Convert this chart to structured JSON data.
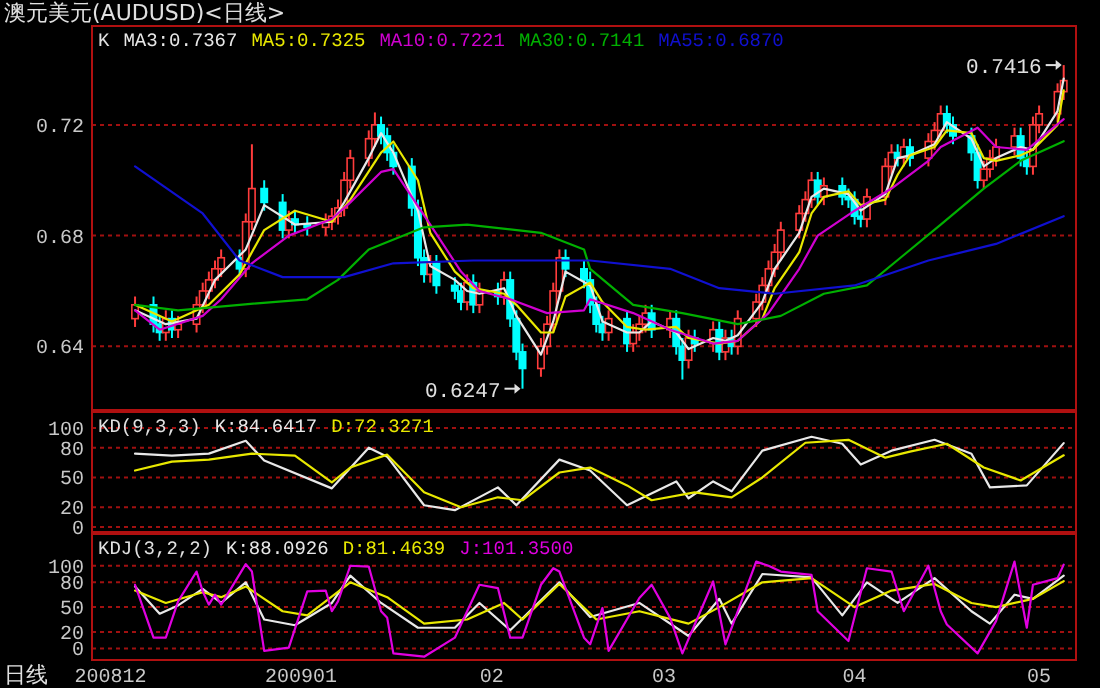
{
  "chart_data": [
    {
      "type": "candlestick",
      "title": "澳元美元(AUDUSD)<日线>",
      "legend_title": "K",
      "legend": "top left",
      "grid": "y",
      "tick_labels": "y",
      "xlim": [
        "2008-11-28",
        "2009-05-07"
      ],
      "ylim": [
        0.617,
        0.755
      ],
      "yticks": [
        0.64,
        0.68,
        0.72
      ],
      "x": [
        "2008-12-05",
        "2008-12-08",
        "2008-12-09",
        "2008-12-10",
        "2008-12-11",
        "2008-12-12",
        "2008-12-15",
        "2008-12-16",
        "2008-12-17",
        "2008-12-18",
        "2008-12-19",
        "2008-12-22",
        "2008-12-23",
        "2008-12-24",
        "2008-12-26",
        "2008-12-29",
        "2008-12-30",
        "2008-12-31",
        "2009-01-02",
        "2009-01-05",
        "2009-01-06",
        "2009-01-07",
        "2009-01-08",
        "2009-01-09",
        "2009-01-12",
        "2009-01-13",
        "2009-01-14",
        "2009-01-15",
        "2009-01-16",
        "2009-01-19",
        "2009-01-20",
        "2009-01-21",
        "2009-01-22",
        "2009-01-23",
        "2009-01-26",
        "2009-01-27",
        "2009-01-28",
        "2009-01-29",
        "2009-01-30",
        "2009-02-02",
        "2009-02-03",
        "2009-02-04",
        "2009-02-05",
        "2009-02-06",
        "2009-02-09",
        "2009-02-10",
        "2009-02-11",
        "2009-02-12",
        "2009-02-13",
        "2009-02-16",
        "2009-02-17",
        "2009-02-18",
        "2009-02-19",
        "2009-02-20",
        "2009-02-23",
        "2009-02-24",
        "2009-02-25",
        "2009-02-26",
        "2009-02-27",
        "2009-03-02",
        "2009-03-03",
        "2009-03-04",
        "2009-03-05",
        "2009-03-06",
        "2009-03-09",
        "2009-03-10",
        "2009-03-11",
        "2009-03-12",
        "2009-03-13",
        "2009-03-16",
        "2009-03-17",
        "2009-03-18",
        "2009-03-19",
        "2009-03-20",
        "2009-03-23",
        "2009-03-24",
        "2009-03-25",
        "2009-03-26",
        "2009-03-27",
        "2009-03-30",
        "2009-03-31",
        "2009-04-01",
        "2009-04-02",
        "2009-04-03",
        "2009-04-06",
        "2009-04-07",
        "2009-04-08",
        "2009-04-09",
        "2009-04-10",
        "2009-04-13",
        "2009-04-14",
        "2009-04-15",
        "2009-04-16",
        "2009-04-17",
        "2009-04-20",
        "2009-04-21",
        "2009-04-22",
        "2009-04-23",
        "2009-04-24",
        "2009-04-27",
        "2009-04-28",
        "2009-04-29",
        "2009-04-30",
        "2009-05-01",
        "2009-05-04",
        "2009-05-05"
      ],
      "ohlc": [
        [
          0.65,
          0.658,
          0.647,
          0.655
        ],
        [
          0.655,
          0.658,
          0.645,
          0.648
        ],
        [
          0.648,
          0.651,
          0.642,
          0.645
        ],
        [
          0.645,
          0.653,
          0.642,
          0.65
        ],
        [
          0.65,
          0.653,
          0.643,
          0.646
        ],
        [
          0.646,
          0.651,
          0.643,
          0.648
        ],
        [
          0.648,
          0.658,
          0.645,
          0.655
        ],
        [
          0.655,
          0.663,
          0.652,
          0.66
        ],
        [
          0.66,
          0.667,
          0.657,
          0.664
        ],
        [
          0.664,
          0.671,
          0.661,
          0.668
        ],
        [
          0.668,
          0.675,
          0.665,
          0.672
        ],
        [
          0.672,
          0.675,
          0.665,
          0.668
        ],
        [
          0.668,
          0.688,
          0.665,
          0.685
        ],
        [
          0.685,
          0.713,
          0.682,
          0.697
        ],
        [
          0.697,
          0.7,
          0.689,
          0.692
        ],
        [
          0.692,
          0.695,
          0.679,
          0.682
        ],
        [
          0.682,
          0.689,
          0.679,
          0.686
        ],
        [
          0.686,
          0.689,
          0.681,
          0.684
        ],
        [
          0.684,
          0.687,
          0.68,
          0.683
        ],
        [
          0.683,
          0.688,
          0.68,
          0.685
        ],
        [
          0.685,
          0.69,
          0.682,
          0.687
        ],
        [
          0.687,
          0.693,
          0.684,
          0.69
        ],
        [
          0.69,
          0.703,
          0.687,
          0.7
        ],
        [
          0.7,
          0.711,
          0.697,
          0.708
        ],
        [
          0.708,
          0.718,
          0.705,
          0.715
        ],
        [
          0.715,
          0.7245,
          0.712,
          0.72
        ],
        [
          0.72,
          0.723,
          0.713,
          0.716
        ],
        [
          0.716,
          0.719,
          0.707,
          0.71
        ],
        [
          0.71,
          0.713,
          0.702,
          0.705
        ],
        [
          0.705,
          0.708,
          0.687,
          0.69
        ],
        [
          0.69,
          0.693,
          0.669,
          0.672
        ],
        [
          0.672,
          0.675,
          0.663,
          0.666
        ],
        [
          0.666,
          0.673,
          0.663,
          0.67
        ],
        [
          0.67,
          0.673,
          0.659,
          0.662
        ],
        [
          0.662,
          0.665,
          0.657,
          0.66
        ],
        [
          0.66,
          0.663,
          0.653,
          0.656
        ],
        [
          0.656,
          0.666,
          0.653,
          0.663
        ],
        [
          0.663,
          0.666,
          0.652,
          0.655
        ],
        [
          0.655,
          0.663,
          0.652,
          0.66
        ],
        [
          0.66,
          0.663,
          0.655,
          0.658
        ],
        [
          0.658,
          0.667,
          0.655,
          0.664
        ],
        [
          0.664,
          0.667,
          0.647,
          0.65
        ],
        [
          0.65,
          0.653,
          0.635,
          0.638
        ],
        [
          0.638,
          0.641,
          0.6247,
          0.632
        ],
        [
          0.632,
          0.643,
          0.629,
          0.64
        ],
        [
          0.64,
          0.651,
          0.637,
          0.648
        ],
        [
          0.648,
          0.663,
          0.645,
          0.66
        ],
        [
          0.66,
          0.675,
          0.657,
          0.672
        ],
        [
          0.672,
          0.675,
          0.665,
          0.668
        ],
        [
          0.668,
          0.671,
          0.661,
          0.664
        ],
        [
          0.664,
          0.667,
          0.652,
          0.655
        ],
        [
          0.655,
          0.658,
          0.645,
          0.648
        ],
        [
          0.648,
          0.651,
          0.642,
          0.645
        ],
        [
          0.645,
          0.653,
          0.642,
          0.65
        ],
        [
          0.65,
          0.653,
          0.638,
          0.641
        ],
        [
          0.641,
          0.648,
          0.638,
          0.645
        ],
        [
          0.645,
          0.651,
          0.642,
          0.648
        ],
        [
          0.648,
          0.655,
          0.645,
          0.652
        ],
        [
          0.652,
          0.655,
          0.643,
          0.646
        ],
        [
          0.646,
          0.653,
          0.643,
          0.65
        ],
        [
          0.65,
          0.653,
          0.637,
          0.64
        ],
        [
          0.64,
          0.643,
          0.628,
          0.635
        ],
        [
          0.635,
          0.646,
          0.632,
          0.643
        ],
        [
          0.643,
          0.646,
          0.638,
          0.641
        ],
        [
          0.641,
          0.649,
          0.638,
          0.646
        ],
        [
          0.646,
          0.649,
          0.635,
          0.638
        ],
        [
          0.638,
          0.646,
          0.635,
          0.643
        ],
        [
          0.643,
          0.646,
          0.637,
          0.64
        ],
        [
          0.64,
          0.653,
          0.637,
          0.65
        ],
        [
          0.65,
          0.659,
          0.647,
          0.656
        ],
        [
          0.656,
          0.665,
          0.653,
          0.662
        ],
        [
          0.662,
          0.671,
          0.659,
          0.668
        ],
        [
          0.668,
          0.677,
          0.665,
          0.674
        ],
        [
          0.674,
          0.685,
          0.671,
          0.682
        ],
        [
          0.682,
          0.691,
          0.679,
          0.688
        ],
        [
          0.688,
          0.696,
          0.685,
          0.693
        ],
        [
          0.693,
          0.703,
          0.69,
          0.7
        ],
        [
          0.7,
          0.703,
          0.691,
          0.694
        ],
        [
          0.694,
          0.701,
          0.691,
          0.698
        ],
        [
          0.698,
          0.701,
          0.691,
          0.694
        ],
        [
          0.694,
          0.697,
          0.69,
          0.693
        ],
        [
          0.693,
          0.696,
          0.684,
          0.687
        ],
        [
          0.687,
          0.69,
          0.683,
          0.686
        ],
        [
          0.686,
          0.697,
          0.683,
          0.694
        ],
        [
          0.694,
          0.708,
          0.691,
          0.705
        ],
        [
          0.705,
          0.713,
          0.702,
          0.71
        ],
        [
          0.71,
          0.713,
          0.705,
          0.708
        ],
        [
          0.708,
          0.715,
          0.705,
          0.712
        ],
        [
          0.712,
          0.715,
          0.705,
          0.708
        ],
        [
          0.708,
          0.717,
          0.705,
          0.714
        ],
        [
          0.714,
          0.721,
          0.711,
          0.718
        ],
        [
          0.718,
          0.727,
          0.715,
          0.724
        ],
        [
          0.724,
          0.727,
          0.717,
          0.72
        ],
        [
          0.72,
          0.723,
          0.713,
          0.716
        ],
        [
          0.716,
          0.719,
          0.707,
          0.71
        ],
        [
          0.71,
          0.713,
          0.697,
          0.7
        ],
        [
          0.7,
          0.707,
          0.697,
          0.704
        ],
        [
          0.704,
          0.711,
          0.701,
          0.708
        ],
        [
          0.708,
          0.715,
          0.705,
          0.712
        ],
        [
          0.712,
          0.719,
          0.709,
          0.716
        ],
        [
          0.716,
          0.719,
          0.705,
          0.708
        ],
        [
          0.708,
          0.711,
          0.702,
          0.705
        ],
        [
          0.705,
          0.723,
          0.702,
          0.72
        ],
        [
          0.72,
          0.727,
          0.717,
          0.724
        ],
        [
          0.724,
          0.735,
          0.721,
          0.732
        ],
        [
          0.732,
          0.7416,
          0.729,
          0.736
        ]
      ],
      "series": [
        {
          "name": "MA3:0.7367",
          "type": "line",
          "color": "#e8e8e8",
          "x": [
            "2008-12-05",
            "2008-12-10",
            "2008-12-15",
            "2008-12-18",
            "2008-12-23",
            "2008-12-26",
            "2008-12-31",
            "2009-01-06",
            "2009-01-08",
            "2009-01-12",
            "2009-01-14",
            "2009-01-16",
            "2009-01-20",
            "2009-01-22",
            "2009-01-26",
            "2009-01-28",
            "2009-01-30",
            "2009-02-03",
            "2009-02-05",
            "2009-02-09",
            "2009-02-11",
            "2009-02-13",
            "2009-02-17",
            "2009-02-19",
            "2009-02-23",
            "2009-02-25",
            "2009-02-27",
            "2009-03-03",
            "2009-03-05",
            "2009-03-09",
            "2009-03-11",
            "2009-03-13",
            "2009-03-17",
            "2009-03-19",
            "2009-03-23",
            "2009-03-25",
            "2009-03-27",
            "2009-03-31",
            "2009-04-02",
            "2009-04-06",
            "2009-04-08",
            "2009-04-10",
            "2009-04-14",
            "2009-04-16",
            "2009-04-20",
            "2009-04-22",
            "2009-04-24",
            "2009-04-28",
            "2009-04-30",
            "2009-05-04",
            "2009-05-05"
          ],
          "values": [
            0.653,
            0.648,
            0.65,
            0.664,
            0.675,
            0.691,
            0.684,
            0.685,
            0.692,
            0.708,
            0.717,
            0.71,
            0.689,
            0.669,
            0.664,
            0.66,
            0.659,
            0.661,
            0.651,
            0.637,
            0.649,
            0.667,
            0.662,
            0.649,
            0.645,
            0.645,
            0.649,
            0.645,
            0.639,
            0.643,
            0.642,
            0.644,
            0.656,
            0.668,
            0.681,
            0.694,
            0.697,
            0.695,
            0.689,
            0.695,
            0.708,
            0.709,
            0.713,
            0.721,
            0.715,
            0.705,
            0.708,
            0.712,
            0.711,
            0.725,
            0.7367
          ]
        },
        {
          "name": "MA5:0.7325",
          "type": "line",
          "color": "#e8e800",
          "x": [
            "2008-12-05",
            "2008-12-11",
            "2008-12-17",
            "2008-12-22",
            "2008-12-26",
            "2008-12-31",
            "2009-01-06",
            "2009-01-09",
            "2009-01-14",
            "2009-01-16",
            "2009-01-20",
            "2009-01-22",
            "2009-01-26",
            "2009-01-29",
            "2009-02-03",
            "2009-02-05",
            "2009-02-09",
            "2009-02-11",
            "2009-02-13",
            "2009-02-17",
            "2009-02-19",
            "2009-02-23",
            "2009-02-26",
            "2009-03-03",
            "2009-03-05",
            "2009-03-10",
            "2009-03-13",
            "2009-03-17",
            "2009-03-19",
            "2009-03-23",
            "2009-03-25",
            "2009-03-27",
            "2009-03-31",
            "2009-04-02",
            "2009-04-06",
            "2009-04-08",
            "2009-04-10",
            "2009-04-14",
            "2009-04-16",
            "2009-04-20",
            "2009-04-22",
            "2009-04-24",
            "2009-04-28",
            "2009-04-30",
            "2009-05-04",
            "2009-05-05"
          ],
          "values": [
            0.655,
            0.649,
            0.655,
            0.666,
            0.682,
            0.689,
            0.685,
            0.693,
            0.71,
            0.714,
            0.7,
            0.681,
            0.667,
            0.661,
            0.659,
            0.655,
            0.645,
            0.645,
            0.658,
            0.663,
            0.656,
            0.647,
            0.646,
            0.647,
            0.643,
            0.641,
            0.642,
            0.65,
            0.661,
            0.674,
            0.688,
            0.694,
            0.696,
            0.691,
            0.693,
            0.702,
            0.709,
            0.712,
            0.718,
            0.717,
            0.708,
            0.707,
            0.709,
            0.711,
            0.72,
            0.7325
          ]
        },
        {
          "name": "MA10:0.7221",
          "type": "line",
          "color": "#d000d0",
          "x": [
            "2008-12-05",
            "2008-12-09",
            "2008-12-16",
            "2008-12-19",
            "2008-12-24",
            "2008-12-30",
            "2009-01-06",
            "2009-01-09",
            "2009-01-14",
            "2009-01-16",
            "2009-01-22",
            "2009-01-27",
            "2009-01-30",
            "2009-02-04",
            "2009-02-10",
            "2009-02-16",
            "2009-02-17",
            "2009-02-24",
            "2009-03-02",
            "2009-03-09",
            "2009-03-13",
            "2009-03-18",
            "2009-03-23",
            "2009-03-26",
            "2009-04-01",
            "2009-04-07",
            "2009-04-13",
            "2009-04-15",
            "2009-04-21",
            "2009-04-24",
            "2009-04-29",
            "2009-05-05"
          ],
          "values": [
            0.653,
            0.646,
            0.651,
            0.657,
            0.67,
            0.68,
            0.686,
            0.692,
            0.703,
            0.704,
            0.684,
            0.667,
            0.66,
            0.657,
            0.652,
            0.653,
            0.657,
            0.652,
            0.646,
            0.641,
            0.642,
            0.652,
            0.668,
            0.68,
            0.689,
            0.697,
            0.707,
            0.712,
            0.719,
            0.712,
            0.711,
            0.7221
          ]
        },
        {
          "name": "MA30:0.7141",
          "type": "line",
          "color": "#00b000",
          "x": [
            "2008-12-05",
            "2008-12-12",
            "2008-12-22",
            "2009-01-02",
            "2009-01-07",
            "2009-01-12",
            "2009-01-21",
            "2009-01-28",
            "2009-02-09",
            "2009-02-16",
            "2009-02-17",
            "2009-02-24",
            "2009-03-04",
            "2009-03-13",
            "2009-03-20",
            "2009-03-27",
            "2009-04-03",
            "2009-04-09",
            "2009-04-15",
            "2009-04-22",
            "2009-04-28",
            "2009-05-05"
          ],
          "values": [
            0.655,
            0.653,
            0.655,
            0.657,
            0.664,
            0.675,
            0.683,
            0.684,
            0.681,
            0.675,
            0.668,
            0.655,
            0.652,
            0.648,
            0.651,
            0.659,
            0.662,
            0.673,
            0.684,
            0.697,
            0.707,
            0.7141
          ]
        },
        {
          "name": "MA55:0.6870",
          "type": "line",
          "color": "#1010d0",
          "x": [
            "2008-12-05",
            "2008-12-16",
            "2008-12-22",
            "2008-12-29",
            "2009-01-08",
            "2009-01-16",
            "2009-01-29",
            "2009-02-11",
            "2009-02-17",
            "2009-03-02",
            "2009-03-10",
            "2009-03-19",
            "2009-04-01",
            "2009-04-13",
            "2009-04-24",
            "2009-05-05"
          ],
          "values": [
            0.705,
            0.688,
            0.671,
            0.665,
            0.665,
            0.67,
            0.671,
            0.671,
            0.671,
            0.668,
            0.661,
            0.659,
            0.662,
            0.671,
            0.677,
            0.687
          ]
        }
      ],
      "annotations": [
        {
          "text": "0.7416",
          "x": "2009-05-05",
          "y": 0.7416
        },
        {
          "text": "0.6247",
          "x": "2009-02-06",
          "y": 0.6247
        }
      ]
    },
    {
      "type": "line",
      "legend_title": "KD(9,3,3)",
      "legend": "top left",
      "grid": "y",
      "tick_labels": "y",
      "xlim": [
        "2008-11-28",
        "2009-05-07"
      ],
      "ylim": [
        -5,
        114
      ],
      "yticks": [
        0,
        20,
        50,
        80,
        100
      ],
      "series": [
        {
          "name": "K:84.6417",
          "color": "#e8e8e8",
          "x": [
            "2008-12-05",
            "2008-12-11",
            "2008-12-17",
            "2008-12-23",
            "2008-12-26",
            "2009-01-06",
            "2009-01-12",
            "2009-01-15",
            "2009-01-21",
            "2009-01-26",
            "2009-02-02",
            "2009-02-05",
            "2009-02-12",
            "2009-02-17",
            "2009-02-23",
            "2009-03-03",
            "2009-03-05",
            "2009-03-09",
            "2009-03-12",
            "2009-03-17",
            "2009-03-25",
            "2009-03-30",
            "2009-04-02",
            "2009-04-07",
            "2009-04-14",
            "2009-04-20",
            "2009-04-23",
            "2009-04-29",
            "2009-05-05"
          ],
          "values": [
            74,
            72,
            74,
            87,
            67,
            39,
            80,
            71,
            22,
            17,
            40,
            22,
            68,
            57,
            22,
            46,
            29,
            46,
            36,
            77,
            91,
            84,
            63,
            77,
            88,
            74,
            40,
            42,
            84.6417
          ]
        },
        {
          "name": "D:72.3271",
          "color": "#e8e800",
          "x": [
            "2008-12-05",
            "2008-12-11",
            "2008-12-17",
            "2008-12-24",
            "2008-12-31",
            "2009-01-06",
            "2009-01-09",
            "2009-01-15",
            "2009-01-21",
            "2009-01-27",
            "2009-02-02",
            "2009-02-06",
            "2009-02-12",
            "2009-02-17",
            "2009-02-23",
            "2009-02-27",
            "2009-03-06",
            "2009-03-12",
            "2009-03-17",
            "2009-03-24",
            "2009-03-31",
            "2009-04-06",
            "2009-04-10",
            "2009-04-16",
            "2009-04-22",
            "2009-04-28",
            "2009-05-05"
          ],
          "values": [
            57,
            66,
            68,
            74,
            72,
            45,
            60,
            73,
            35,
            20,
            30,
            27,
            55,
            60,
            42,
            27,
            35,
            30,
            50,
            85,
            88,
            70,
            76,
            84,
            60,
            47,
            72.3271
          ]
        }
      ]
    },
    {
      "type": "line",
      "legend_title": "KDJ(3,2,2)",
      "legend": "top left",
      "grid": "y",
      "xlabel": "日线",
      "xlim": [
        "2008-11-28",
        "2009-05-07"
      ],
      "ylim": [
        -14,
        136
      ],
      "yticks": [
        0,
        20,
        50,
        80,
        100
      ],
      "xticks": [
        {
          "value": "2008-12-01",
          "label": "200812"
        },
        {
          "value": "2009-01-01",
          "label": "200901"
        },
        {
          "value": "2009-02-01",
          "label": "02"
        },
        {
          "value": "2009-03-01",
          "label": "03"
        },
        {
          "value": "2009-04-01",
          "label": "04"
        },
        {
          "value": "2009-05-01",
          "label": "05"
        }
      ],
      "series": [
        {
          "name": "K:88.0926",
          "color": "#e8e8e8",
          "x": [
            "2008-12-05",
            "2008-12-09",
            "2008-12-12",
            "2008-12-16",
            "2008-12-19",
            "2008-12-23",
            "2008-12-26",
            "2008-12-31",
            "2009-01-06",
            "2009-01-09",
            "2009-01-14",
            "2009-01-20",
            "2009-01-26",
            "2009-01-30",
            "2009-02-04",
            "2009-02-12",
            "2009-02-17",
            "2009-02-25",
            "2009-03-05",
            "2009-03-10",
            "2009-03-12",
            "2009-03-17",
            "2009-03-25",
            "2009-03-30",
            "2009-04-03",
            "2009-04-08",
            "2009-04-14",
            "2009-04-20",
            "2009-04-23",
            "2009-04-27",
            "2009-04-30",
            "2009-05-05"
          ],
          "values": [
            75,
            42,
            52,
            72,
            55,
            80,
            35,
            28,
            55,
            88,
            55,
            25,
            25,
            55,
            22,
            80,
            38,
            55,
            15,
            60,
            30,
            90,
            86,
            40,
            80,
            55,
            85,
            45,
            30,
            65,
            60,
            88.0926
          ]
        },
        {
          "name": "D:81.4639",
          "color": "#e8e800",
          "x": [
            "2008-12-05",
            "2008-12-10",
            "2008-12-16",
            "2008-12-19",
            "2008-12-23",
            "2008-12-29",
            "2009-01-02",
            "2009-01-09",
            "2009-01-15",
            "2009-01-21",
            "2009-01-28",
            "2009-02-03",
            "2009-02-06",
            "2009-02-12",
            "2009-02-18",
            "2009-02-25",
            "2009-03-05",
            "2009-03-10",
            "2009-03-17",
            "2009-03-25",
            "2009-04-01",
            "2009-04-07",
            "2009-04-14",
            "2009-04-20",
            "2009-04-24",
            "2009-04-30",
            "2009-05-05"
          ],
          "values": [
            70,
            55,
            68,
            62,
            75,
            45,
            40,
            80,
            62,
            30,
            35,
            55,
            35,
            78,
            35,
            45,
            30,
            50,
            80,
            85,
            50,
            70,
            78,
            55,
            50,
            60,
            81.4639
          ]
        },
        {
          "name": "J:101.3500",
          "color": "#e000e0",
          "x": [
            "2008-12-05",
            "2008-12-08",
            "2008-12-10",
            "2008-12-12",
            "2008-12-15",
            "2008-12-16",
            "2008-12-17",
            "2008-12-18",
            "2008-12-19",
            "2008-12-23",
            "2008-12-24",
            "2008-12-26",
            "2008-12-30",
            "2009-01-02",
            "2009-01-05",
            "2009-01-06",
            "2009-01-07",
            "2009-01-09",
            "2009-01-12",
            "2009-01-14",
            "2009-01-15",
            "2009-01-16",
            "2009-01-21",
            "2009-01-26",
            "2009-01-28",
            "2009-01-30",
            "2009-02-02",
            "2009-02-04",
            "2009-02-06",
            "2009-02-09",
            "2009-02-11",
            "2009-02-12",
            "2009-02-16",
            "2009-02-17",
            "2009-02-19",
            "2009-02-20",
            "2009-02-25",
            "2009-02-27",
            "2009-03-02",
            "2009-03-04",
            "2009-03-09",
            "2009-03-11",
            "2009-03-16",
            "2009-03-18",
            "2009-03-20",
            "2009-03-25",
            "2009-03-26",
            "2009-03-31",
            "2009-04-03",
            "2009-04-07",
            "2009-04-09",
            "2009-04-13",
            "2009-04-15",
            "2009-04-16",
            "2009-04-21",
            "2009-04-24",
            "2009-04-27",
            "2009-04-29",
            "2009-04-30",
            "2009-05-04",
            "2009-05-05"
          ],
          "values": [
            77,
            13,
            13,
            57,
            93,
            69,
            53,
            65,
            53,
            102,
            93,
            -3,
            1,
            69,
            70,
            45,
            57,
            100,
            99,
            45,
            37,
            -6,
            -10,
            13,
            45,
            77,
            73,
            13,
            13,
            77,
            97,
            93,
            13,
            5,
            49,
            -3,
            61,
            77,
            37,
            -6,
            81,
            5,
            105,
            100,
            93,
            89,
            45,
            9,
            97,
            93,
            45,
            100,
            45,
            29,
            -6,
            33,
            105,
            25,
            77,
            85,
            101.35
          ]
        }
      ]
    }
  ]
}
